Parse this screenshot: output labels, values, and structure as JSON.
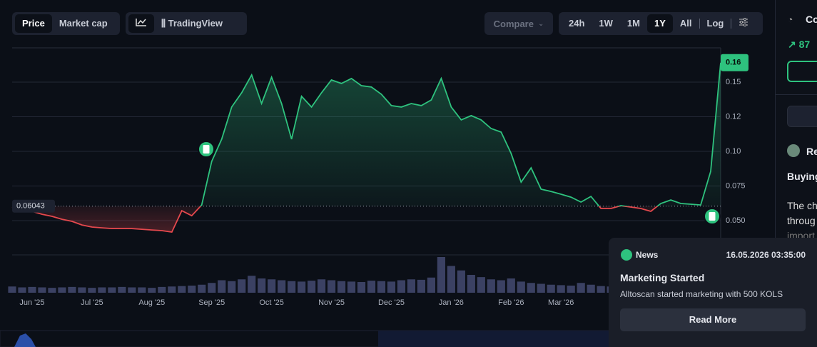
{
  "toolbar": {
    "modes": [
      "Price",
      "Market cap"
    ],
    "tradingview": "TradingView",
    "compare": "Compare",
    "ranges": [
      "24h",
      "1W",
      "1M",
      "1Y",
      "All"
    ],
    "log": "Log"
  },
  "chart_data": {
    "type": "area",
    "categories": [
      null,
      null,
      "Jun '25",
      null,
      null,
      null,
      null,
      null,
      "Jul '25",
      null,
      null,
      null,
      null,
      null,
      "Aug '25",
      null,
      null,
      null,
      null,
      null,
      "Sep '25",
      null,
      null,
      null,
      null,
      null,
      "Oct '25",
      null,
      null,
      null,
      null,
      null,
      "Nov '25",
      null,
      null,
      null,
      null,
      null,
      "Dec '25",
      null,
      null,
      null,
      null,
      null,
      "Jan '26",
      null,
      null,
      null,
      null,
      null,
      "Feb '26",
      null,
      null,
      null,
      null,
      "Mar '26",
      null,
      null,
      null,
      null,
      null,
      null,
      null,
      null,
      null,
      null,
      null,
      null,
      null,
      null,
      null,
      null
    ],
    "series": [
      {
        "name": "Price",
        "color": "#2ec27e",
        "values": [
          0.0598,
          0.0582,
          0.0567,
          0.0546,
          0.0531,
          0.051,
          0.0495,
          0.0469,
          0.0454,
          0.0448,
          0.0443,
          0.0443,
          0.0443,
          0.0438,
          0.0433,
          0.0428,
          0.0418,
          0.0572,
          0.0536,
          0.0613,
          0.0928,
          0.1088,
          0.132,
          0.1423,
          0.1552,
          0.1345,
          0.1536,
          0.1345,
          0.1088,
          0.1397,
          0.132,
          0.1423,
          0.1515,
          0.149,
          0.1526,
          0.1474,
          0.1464,
          0.1412,
          0.133,
          0.132,
          0.1345,
          0.133,
          0.1371,
          0.1526,
          0.132,
          0.1227,
          0.1258,
          0.1227,
          0.1165,
          0.1139,
          0.0985,
          0.0778,
          0.0881,
          0.0727,
          0.0711,
          0.0691,
          0.067,
          0.0634,
          0.0675,
          0.0588,
          0.0588,
          0.0608,
          0.0598,
          0.0588,
          0.0567,
          0.0624,
          0.0649,
          0.0624,
          0.0619,
          0.0613,
          0.0856,
          0.164
        ]
      }
    ],
    "down_color": "#e5484d",
    "baseline": 0.06043,
    "last_price": {
      "value": 0.164,
      "label": "0.16"
    },
    "ylim": [
      0.0253,
      0.1747
    ],
    "yticks": [
      {
        "value": 0.05,
        "label": "0.050"
      },
      0.075,
      {
        "value": 0.1,
        "label": "0.10"
      },
      {
        "value": 0.125,
        "label": "0.12"
      },
      0.15
    ],
    "grid": true,
    "volume": {
      "color": "#3b4163",
      "values": [
        14,
        12,
        13,
        12,
        11,
        12,
        13,
        12,
        11,
        12,
        12,
        13,
        12,
        12,
        11,
        13,
        14,
        15,
        16,
        18,
        22,
        28,
        26,
        30,
        38,
        32,
        30,
        28,
        26,
        25,
        27,
        30,
        28,
        26,
        25,
        24,
        27,
        26,
        25,
        28,
        30,
        29,
        34,
        80,
        60,
        50,
        40,
        35,
        30,
        28,
        32,
        25,
        22,
        20,
        18,
        17,
        16,
        22,
        18,
        15,
        14,
        13,
        14,
        13,
        12,
        13,
        12,
        14,
        13,
        12,
        15,
        20
      ]
    }
  },
  "news_card": {
    "tag": "News",
    "date": "16.05.2026 03:35:00",
    "title": "Marketing Started",
    "text": "Alltoscan started marketing with 500 KOLS",
    "button": "Read More"
  },
  "sidebar": {
    "heading": "Co",
    "stat": "87",
    "author": "Re",
    "lines": [
      "Buying",
      "The ch",
      "throug",
      "import"
    ]
  }
}
